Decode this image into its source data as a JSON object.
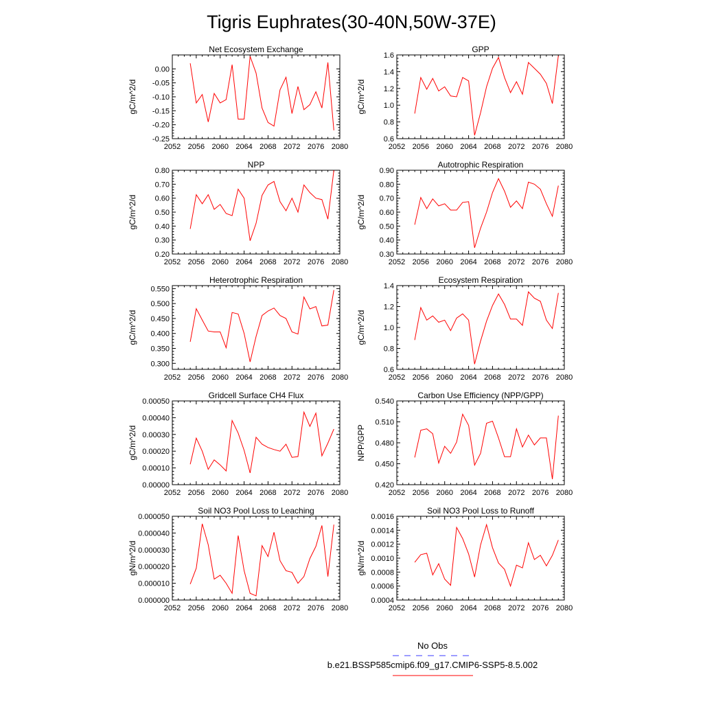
{
  "title": "Tigris Euphrates(30-40N,50W-37E)",
  "legend": {
    "obs_label": "No Obs",
    "model_label": "b.e21.BSSP585cmip6.f09_g17.CMIP6-SSP5-8.5.002",
    "obs_color": "#3a3aff",
    "model_color": "#ff0000"
  },
  "line_color": "#ff0000",
  "x_ticks": [
    2052,
    2056,
    2060,
    2064,
    2068,
    2072,
    2076,
    2080
  ],
  "chart_data": [
    {
      "type": "line",
      "title": "Net Ecosystem Exchange",
      "ylabel": "gC/m^2/d",
      "xlim": [
        2052,
        2080
      ],
      "ylim": [
        -0.25,
        0.05
      ],
      "yticks": [
        -0.25,
        -0.2,
        -0.15,
        -0.1,
        -0.05,
        0.0
      ],
      "ytick_labels": [
        "-0.25",
        "-0.20",
        "-0.15",
        "-0.10",
        "-0.05",
        "0.00"
      ],
      "x": [
        2055,
        2056,
        2057,
        2058,
        2059,
        2060,
        2061,
        2062,
        2063,
        2064,
        2065,
        2066,
        2067,
        2068,
        2069,
        2070,
        2071,
        2072,
        2073,
        2074,
        2075,
        2076,
        2077,
        2078,
        2079
      ],
      "values": [
        0.02,
        -0.122,
        -0.092,
        -0.19,
        -0.088,
        -0.122,
        -0.11,
        0.015,
        -0.18,
        -0.18,
        0.045,
        -0.015,
        -0.14,
        -0.192,
        -0.205,
        -0.075,
        -0.03,
        -0.16,
        -0.063,
        -0.146,
        -0.128,
        -0.082,
        -0.14,
        0.023,
        -0.22
      ]
    },
    {
      "type": "line",
      "title": "GPP",
      "ylabel": "gC/m^2/d",
      "xlim": [
        2052,
        2080
      ],
      "ylim": [
        0.6,
        1.6
      ],
      "yticks": [
        0.6,
        0.8,
        1.0,
        1.2,
        1.4,
        1.6
      ],
      "ytick_labels": [
        "0.6",
        "0.8",
        "1.0",
        "1.2",
        "1.4",
        "1.6"
      ],
      "x": [
        2055,
        2056,
        2057,
        2058,
        2059,
        2060,
        2061,
        2062,
        2063,
        2064,
        2065,
        2066,
        2067,
        2068,
        2069,
        2070,
        2071,
        2072,
        2073,
        2074,
        2075,
        2076,
        2077,
        2078,
        2079
      ],
      "values": [
        0.9,
        1.33,
        1.19,
        1.32,
        1.17,
        1.22,
        1.11,
        1.1,
        1.33,
        1.29,
        0.64,
        0.91,
        1.22,
        1.44,
        1.57,
        1.33,
        1.15,
        1.28,
        1.13,
        1.51,
        1.44,
        1.37,
        1.26,
        1.02,
        1.59
      ]
    },
    {
      "type": "line",
      "title": "NPP",
      "ylabel": "gC/m^2/d",
      "xlim": [
        2052,
        2080
      ],
      "ylim": [
        0.2,
        0.8
      ],
      "yticks": [
        0.2,
        0.3,
        0.4,
        0.5,
        0.6,
        0.7,
        0.8
      ],
      "ytick_labels": [
        "0.20",
        "0.30",
        "0.40",
        "0.50",
        "0.60",
        "0.70",
        "0.80"
      ],
      "x": [
        2055,
        2056,
        2057,
        2058,
        2059,
        2060,
        2061,
        2062,
        2063,
        2064,
        2065,
        2066,
        2067,
        2068,
        2069,
        2070,
        2071,
        2072,
        2073,
        2074,
        2075,
        2076,
        2077,
        2078,
        2079
      ],
      "values": [
        0.38,
        0.625,
        0.56,
        0.625,
        0.52,
        0.555,
        0.49,
        0.475,
        0.665,
        0.6,
        0.295,
        0.42,
        0.62,
        0.695,
        0.72,
        0.575,
        0.51,
        0.6,
        0.5,
        0.695,
        0.64,
        0.6,
        0.59,
        0.45,
        0.8
      ]
    },
    {
      "type": "line",
      "title": "Autotrophic Respiration",
      "ylabel": "gC/m^2/d",
      "xlim": [
        2052,
        2080
      ],
      "ylim": [
        0.3,
        0.9
      ],
      "yticks": [
        0.3,
        0.4,
        0.5,
        0.6,
        0.7,
        0.8,
        0.9
      ],
      "ytick_labels": [
        "0.30",
        "0.40",
        "0.50",
        "0.60",
        "0.70",
        "0.80",
        "0.90"
      ],
      "x": [
        2055,
        2056,
        2057,
        2058,
        2059,
        2060,
        2061,
        2062,
        2063,
        2064,
        2065,
        2066,
        2067,
        2068,
        2069,
        2070,
        2071,
        2072,
        2073,
        2074,
        2075,
        2076,
        2077,
        2078,
        2079
      ],
      "values": [
        0.51,
        0.705,
        0.625,
        0.695,
        0.645,
        0.66,
        0.615,
        0.615,
        0.67,
        0.675,
        0.345,
        0.485,
        0.6,
        0.74,
        0.84,
        0.75,
        0.635,
        0.68,
        0.625,
        0.815,
        0.8,
        0.765,
        0.66,
        0.57,
        0.79
      ]
    },
    {
      "type": "line",
      "title": "Heterotrophic Respiration",
      "ylabel": "gC/m^2/d",
      "xlim": [
        2052,
        2080
      ],
      "ylim": [
        0.28,
        0.56
      ],
      "yticks": [
        0.3,
        0.35,
        0.4,
        0.45,
        0.5,
        0.55
      ],
      "ytick_labels": [
        "0.300",
        "0.350",
        "0.400",
        "0.450",
        "0.500",
        "0.550"
      ],
      "x": [
        2055,
        2056,
        2057,
        2058,
        2059,
        2060,
        2061,
        2062,
        2063,
        2064,
        2065,
        2066,
        2067,
        2068,
        2069,
        2070,
        2071,
        2072,
        2073,
        2074,
        2075,
        2076,
        2077,
        2078,
        2079
      ],
      "values": [
        0.372,
        0.483,
        0.445,
        0.408,
        0.405,
        0.405,
        0.352,
        0.47,
        0.465,
        0.4,
        0.305,
        0.39,
        0.46,
        0.475,
        0.485,
        0.46,
        0.45,
        0.405,
        0.398,
        0.522,
        0.482,
        0.49,
        0.425,
        0.428,
        0.545
      ]
    },
    {
      "type": "line",
      "title": "Ecosystem Respiration",
      "ylabel": "gC/m^2/d",
      "xlim": [
        2052,
        2080
      ],
      "ylim": [
        0.6,
        1.4
      ],
      "yticks": [
        0.6,
        0.8,
        1.0,
        1.2,
        1.4
      ],
      "ytick_labels": [
        "0.6",
        "0.8",
        "1.0",
        "1.2",
        "1.4"
      ],
      "x": [
        2055,
        2056,
        2057,
        2058,
        2059,
        2060,
        2061,
        2062,
        2063,
        2064,
        2065,
        2066,
        2067,
        2068,
        2069,
        2070,
        2071,
        2072,
        2073,
        2074,
        2075,
        2076,
        2077,
        2078,
        2079
      ],
      "values": [
        0.88,
        1.19,
        1.07,
        1.11,
        1.05,
        1.07,
        0.97,
        1.09,
        1.13,
        1.07,
        0.65,
        0.87,
        1.06,
        1.21,
        1.32,
        1.22,
        1.08,
        1.08,
        1.02,
        1.34,
        1.28,
        1.25,
        1.07,
        0.99,
        1.33
      ]
    },
    {
      "type": "line",
      "title": "Gridcell Surface CH4 Flux",
      "ylabel": "gC/m^2/d",
      "xlim": [
        2052,
        2080
      ],
      "ylim": [
        0.0,
        0.0005
      ],
      "yticks": [
        0.0,
        0.0001,
        0.0002,
        0.0003,
        0.0004,
        0.0005
      ],
      "ytick_labels": [
        "0.00000",
        "0.00010",
        "0.00020",
        "0.00030",
        "0.00040",
        "0.00050"
      ],
      "x": [
        2055,
        2056,
        2057,
        2058,
        2059,
        2060,
        2061,
        2062,
        2063,
        2064,
        2065,
        2066,
        2067,
        2068,
        2069,
        2070,
        2071,
        2072,
        2073,
        2074,
        2075,
        2076,
        2077,
        2078,
        2079
      ],
      "values": [
        0.000122,
        0.000278,
        0.0002,
        9.2e-05,
        0.000148,
        0.000118,
        8.2e-05,
        0.000383,
        0.000308,
        0.000205,
        7e-05,
        0.000283,
        0.000242,
        0.000222,
        0.00021,
        0.0002,
        0.000242,
        0.000163,
        0.000168,
        0.000433,
        0.000348,
        0.000427,
        0.000172,
        0.000248,
        0.000332
      ]
    },
    {
      "type": "line",
      "title": "Carbon Use Efficiency (NPP/GPP)",
      "ylabel": "NPP/GPP",
      "xlim": [
        2052,
        2080
      ],
      "ylim": [
        0.42,
        0.54
      ],
      "yticks": [
        0.42,
        0.45,
        0.48,
        0.51,
        0.54
      ],
      "ytick_labels": [
        "0.420",
        "0.450",
        "0.480",
        "0.510",
        "0.540"
      ],
      "x": [
        2055,
        2056,
        2057,
        2058,
        2059,
        2060,
        2061,
        2062,
        2063,
        2064,
        2065,
        2066,
        2067,
        2068,
        2069,
        2070,
        2071,
        2072,
        2073,
        2074,
        2075,
        2076,
        2077,
        2078,
        2079
      ],
      "values": [
        0.459,
        0.498,
        0.5,
        0.493,
        0.451,
        0.475,
        0.465,
        0.481,
        0.521,
        0.505,
        0.448,
        0.465,
        0.508,
        0.511,
        0.487,
        0.46,
        0.46,
        0.5,
        0.474,
        0.491,
        0.477,
        0.487,
        0.487,
        0.428,
        0.519
      ]
    },
    {
      "type": "line",
      "title": "Soil NO3 Pool Loss to Leaching",
      "ylabel": "gN/m^2/d",
      "xlim": [
        2052,
        2080
      ],
      "ylim": [
        0.0,
        5e-05
      ],
      "yticks": [
        0.0,
        1e-05,
        2e-05,
        3e-05,
        4e-05,
        5e-05
      ],
      "ytick_labels": [
        "0.000000",
        "0.000010",
        "0.000020",
        "0.000030",
        "0.000040",
        "0.000050"
      ],
      "x": [
        2055,
        2056,
        2057,
        2058,
        2059,
        2060,
        2061,
        2062,
        2063,
        2064,
        2065,
        2066,
        2067,
        2068,
        2069,
        2070,
        2071,
        2072,
        2073,
        2074,
        2075,
        2076,
        2077,
        2078,
        2079
      ],
      "values": [
        9.5e-06,
        1.9e-05,
        4.55e-05,
        3.3e-05,
        1.25e-05,
        1.48e-05,
        1e-05,
        4e-06,
        3.85e-05,
        1.75e-05,
        4e-06,
        2.5e-06,
        3.25e-05,
        2.6e-05,
        4.05e-05,
        2.35e-05,
        1.75e-05,
        1.65e-05,
        1e-05,
        1.4e-05,
        2.48e-05,
        3.2e-05,
        4.45e-05,
        1.4e-05,
        4.5e-05
      ]
    },
    {
      "type": "line",
      "title": "Soil NO3 Pool Loss to Runoff",
      "ylabel": "gN/m^2/d",
      "xlim": [
        2052,
        2080
      ],
      "ylim": [
        0.0004,
        0.0016
      ],
      "yticks": [
        0.0004,
        0.0006,
        0.0008,
        0.001,
        0.0012,
        0.0014,
        0.0016
      ],
      "ytick_labels": [
        "0.0004",
        "0.0006",
        "0.0008",
        "0.0010",
        "0.0012",
        "0.0014",
        "0.0016"
      ],
      "x": [
        2055,
        2056,
        2057,
        2058,
        2059,
        2060,
        2061,
        2062,
        2063,
        2064,
        2065,
        2066,
        2067,
        2068,
        2069,
        2070,
        2071,
        2072,
        2073,
        2074,
        2075,
        2076,
        2077,
        2078,
        2079
      ],
      "values": [
        0.00094,
        0.00105,
        0.00107,
        0.00076,
        0.00092,
        0.0007,
        0.00061,
        0.00144,
        0.00128,
        0.00106,
        0.00073,
        0.00119,
        0.00148,
        0.00115,
        0.00093,
        0.00084,
        0.0006,
        0.0009,
        0.00086,
        0.00122,
        0.00098,
        0.00104,
        0.00089,
        0.00104,
        0.00126
      ]
    }
  ]
}
